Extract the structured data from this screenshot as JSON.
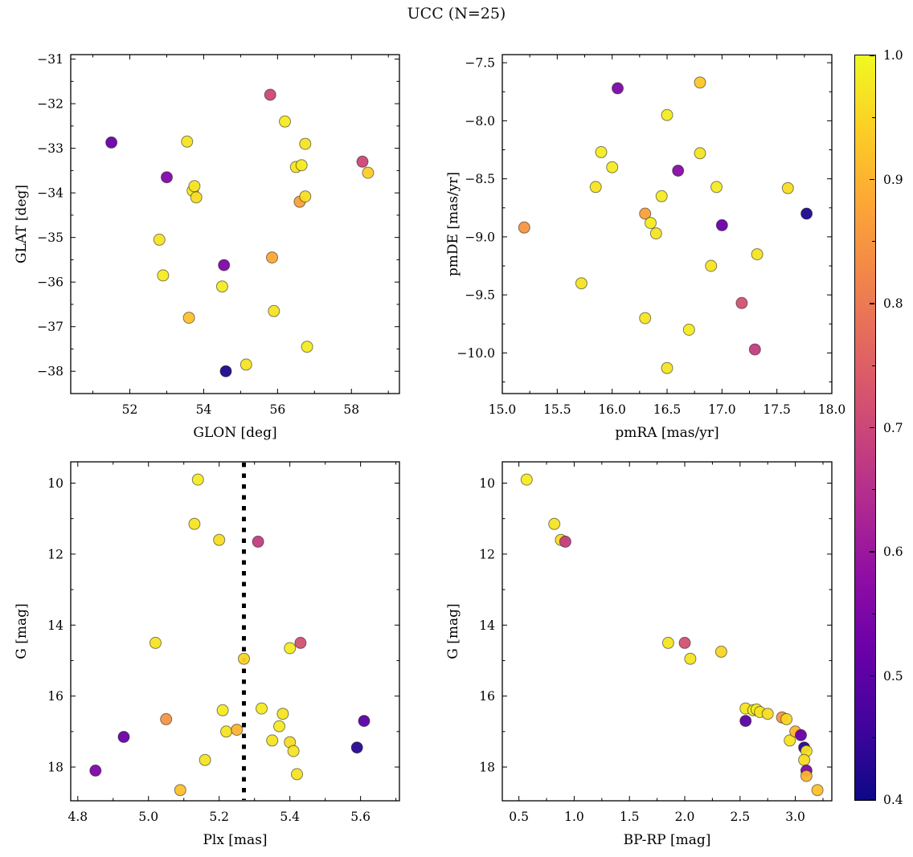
{
  "chart_data": {
    "type": "scatter",
    "title": "UCC (N=25)",
    "n": 25,
    "grid": false,
    "marker": "circle",
    "panels": [
      {
        "name": "glon-glat",
        "xlabel": "GLON [deg]",
        "ylabel": "GLAT [deg]",
        "xlim": [
          50.4,
          59.3
        ],
        "ylim": [
          -38.5,
          -30.9
        ],
        "xticks": [
          52,
          54,
          56,
          58
        ],
        "xtick_labels": [
          "52",
          "54",
          "56",
          "58"
        ],
        "yticks": [
          -31,
          -32,
          -33,
          -34,
          -35,
          -36,
          -37,
          -38
        ],
        "ytick_labels": [
          "−31",
          "−32",
          "−33",
          "−34",
          "−35",
          "−36",
          "−37",
          "−38"
        ],
        "x": [
          51.5,
          52.8,
          52.9,
          53.0,
          53.55,
          53.6,
          53.7,
          53.8,
          53.75,
          54.5,
          54.55,
          54.6,
          55.15,
          55.8,
          55.85,
          55.9,
          56.2,
          56.5,
          56.65,
          56.75,
          56.6,
          56.75,
          56.8,
          58.3,
          58.45
        ],
        "y": [
          -32.87,
          -35.05,
          -35.85,
          -33.65,
          -32.85,
          -36.8,
          -33.95,
          -34.1,
          -33.85,
          -36.1,
          -35.62,
          -38.0,
          -37.85,
          -31.8,
          -35.45,
          -36.65,
          -32.4,
          -33.42,
          -33.38,
          -32.9,
          -34.2,
          -34.08,
          -37.45,
          -33.3,
          -33.55
        ],
        "c": [
          0.52,
          0.97,
          0.98,
          0.56,
          0.97,
          0.92,
          0.98,
          0.96,
          0.97,
          0.98,
          0.55,
          0.42,
          0.97,
          0.7,
          0.88,
          0.97,
          0.98,
          0.97,
          0.98,
          0.97,
          0.87,
          0.96,
          0.98,
          0.7,
          0.94
        ]
      },
      {
        "name": "pmra-pmde",
        "xlabel": "pmRA [mas/yr]",
        "ylabel": "pmDE [mas/yr]",
        "xlim": [
          15.0,
          18.0
        ],
        "ylim": [
          -10.35,
          -7.43
        ],
        "xticks": [
          15.0,
          15.5,
          16.0,
          16.5,
          17.0,
          17.5,
          18.0
        ],
        "xtick_labels": [
          "15.0",
          "15.5",
          "16.0",
          "16.5",
          "17.0",
          "17.5",
          "18.0"
        ],
        "yticks": [
          -7.5,
          -8.0,
          -8.5,
          -9.0,
          -9.5,
          -10.0
        ],
        "ytick_labels": [
          "−7.5",
          "−8.0",
          "−8.5",
          "−9.0",
          "−9.5",
          "−10.0"
        ],
        "x": [
          15.2,
          15.72,
          15.85,
          15.9,
          16.0,
          16.05,
          16.3,
          16.3,
          16.35,
          16.4,
          16.45,
          16.5,
          16.5,
          16.6,
          16.7,
          16.8,
          16.8,
          16.9,
          16.95,
          17.0,
          17.18,
          17.3,
          17.32,
          17.6,
          17.77
        ],
        "y": [
          -8.92,
          -9.4,
          -8.57,
          -8.27,
          -8.4,
          -7.72,
          -8.8,
          -9.7,
          -8.88,
          -8.97,
          -8.65,
          -7.95,
          -10.13,
          -8.43,
          -9.8,
          -7.67,
          -8.28,
          -9.25,
          -8.57,
          -8.9,
          -9.57,
          -9.97,
          -9.15,
          -8.58,
          -8.8
        ],
        "c": [
          0.85,
          0.97,
          0.97,
          0.98,
          0.98,
          0.55,
          0.87,
          0.97,
          0.98,
          0.97,
          0.98,
          0.98,
          0.97,
          0.57,
          0.98,
          0.93,
          0.97,
          0.97,
          0.98,
          0.52,
          0.72,
          0.68,
          0.97,
          0.96,
          0.42
        ]
      },
      {
        "name": "plx-g",
        "xlabel": "Plx [mas]",
        "ylabel": "G [mag]",
        "xlim": [
          4.78,
          5.71
        ],
        "ylim": [
          18.95,
          9.4
        ],
        "xticks": [
          4.8,
          5.0,
          5.2,
          5.4,
          5.6
        ],
        "xtick_labels": [
          "4.8",
          "5.0",
          "5.2",
          "5.4",
          "5.6"
        ],
        "yticks": [
          10,
          12,
          14,
          16,
          18
        ],
        "ytick_labels": [
          "10",
          "12",
          "14",
          "16",
          "18"
        ],
        "vline_x": 5.27,
        "x": [
          4.85,
          4.93,
          5.02,
          5.05,
          5.09,
          5.14,
          5.13,
          5.16,
          5.2,
          5.21,
          5.22,
          5.25,
          5.27,
          5.31,
          5.32,
          5.35,
          5.37,
          5.38,
          5.4,
          5.4,
          5.41,
          5.42,
          5.43,
          5.59,
          5.61
        ],
        "y": [
          18.1,
          17.15,
          14.5,
          16.65,
          18.65,
          9.9,
          11.15,
          17.8,
          11.6,
          16.4,
          17.0,
          16.95,
          14.95,
          11.65,
          16.35,
          17.25,
          16.85,
          16.5,
          14.65,
          17.3,
          17.55,
          18.2,
          14.5,
          17.45,
          16.7
        ],
        "c": [
          0.55,
          0.52,
          0.97,
          0.85,
          0.92,
          0.98,
          0.97,
          0.97,
          0.96,
          0.98,
          0.97,
          0.9,
          0.95,
          0.68,
          0.98,
          0.97,
          0.98,
          0.97,
          0.98,
          0.96,
          0.97,
          0.97,
          0.72,
          0.43,
          0.5
        ]
      },
      {
        "name": "bprp-g",
        "xlabel": "BP-RP [mag]",
        "ylabel": "G [mag]",
        "xlim": [
          0.35,
          3.33
        ],
        "ylim": [
          18.95,
          9.4
        ],
        "xticks": [
          0.5,
          1.0,
          1.5,
          2.0,
          2.5,
          3.0
        ],
        "xtick_labels": [
          "0.5",
          "1.0",
          "1.5",
          "2.0",
          "2.5",
          "3.0"
        ],
        "yticks": [
          10,
          12,
          14,
          16,
          18
        ],
        "ytick_labels": [
          "10",
          "12",
          "14",
          "16",
          "18"
        ],
        "x": [
          0.57,
          0.82,
          0.88,
          0.92,
          1.85,
          2.0,
          2.05,
          2.33,
          2.55,
          2.55,
          2.62,
          2.65,
          2.68,
          2.75,
          2.88,
          2.92,
          2.95,
          3.0,
          3.05,
          3.08,
          3.1,
          3.08,
          3.1,
          3.1,
          3.2
        ],
        "y": [
          9.9,
          11.15,
          11.6,
          11.65,
          14.5,
          14.5,
          14.95,
          14.75,
          16.35,
          16.7,
          16.4,
          16.38,
          16.45,
          16.5,
          16.6,
          16.65,
          17.25,
          17.0,
          17.1,
          17.45,
          17.55,
          17.8,
          18.1,
          18.25,
          18.65
        ],
        "c": [
          0.98,
          0.97,
          0.96,
          0.68,
          0.97,
          0.72,
          0.97,
          0.95,
          0.97,
          0.5,
          0.98,
          0.98,
          0.97,
          0.96,
          0.85,
          0.95,
          0.97,
          0.9,
          0.52,
          0.43,
          0.97,
          0.96,
          0.55,
          0.9,
          0.92
        ]
      }
    ],
    "colorbar": {
      "colormap": "plasma",
      "vmin": 0.4,
      "vmax": 1.0,
      "ticks": [
        1.0,
        0.9,
        0.8,
        0.7,
        0.6,
        0.5,
        0.4
      ],
      "tick_labels": [
        "1.0",
        "0.9",
        "0.8",
        "0.7",
        "0.6",
        "0.5",
        "0.4"
      ],
      "plasma_stops": [
        "#0d0887",
        "#41049d",
        "#6a00a8",
        "#8f0da4",
        "#b12a90",
        "#cc4778",
        "#e16462",
        "#f2844b",
        "#fca636",
        "#fcce25",
        "#f0f921"
      ]
    }
  }
}
